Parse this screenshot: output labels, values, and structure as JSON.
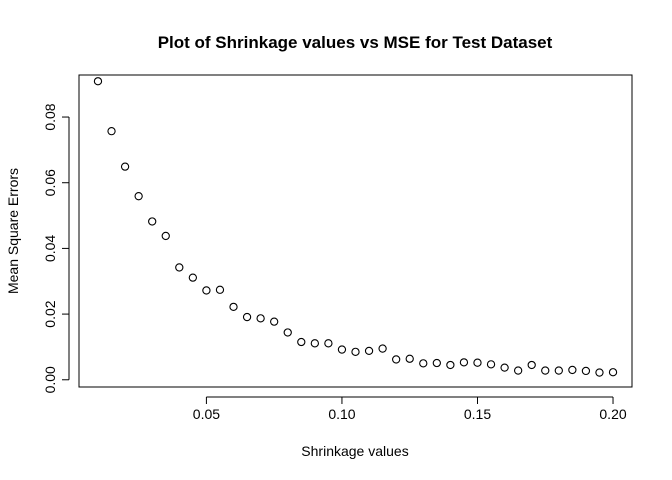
{
  "chart_data": {
    "type": "scatter",
    "title": "Plot of Shrinkage values vs MSE for Test Dataset",
    "xlabel": "Shrinkage values",
    "ylabel": "Mean Square Errors",
    "xlim": [
      0.003,
      0.207
    ],
    "ylim": [
      -0.0022,
      0.0928
    ],
    "xticks": [
      0.05,
      0.1,
      0.15,
      0.2
    ],
    "xtick_labels": [
      "0.05",
      "0.10",
      "0.15",
      "0.20"
    ],
    "yticks": [
      0.0,
      0.02,
      0.04,
      0.06,
      0.08
    ],
    "ytick_labels": [
      "0.00",
      "0.02",
      "0.04",
      "0.06",
      "0.08"
    ],
    "grid": false,
    "legend": "none",
    "marker": "open-circle",
    "x": [
      0.01,
      0.015,
      0.02,
      0.025,
      0.03,
      0.035,
      0.04,
      0.045,
      0.05,
      0.055,
      0.06,
      0.065,
      0.07,
      0.075,
      0.08,
      0.085,
      0.09,
      0.095,
      0.1,
      0.105,
      0.11,
      0.115,
      0.12,
      0.125,
      0.13,
      0.135,
      0.14,
      0.145,
      0.15,
      0.155,
      0.16,
      0.165,
      0.17,
      0.175,
      0.18,
      0.185,
      0.19,
      0.195,
      0.2
    ],
    "y": [
      0.0909,
      0.0757,
      0.0649,
      0.0559,
      0.0482,
      0.0438,
      0.0342,
      0.0311,
      0.0272,
      0.0274,
      0.0222,
      0.0191,
      0.0187,
      0.0177,
      0.0144,
      0.0115,
      0.0111,
      0.0111,
      0.0092,
      0.0085,
      0.0088,
      0.0095,
      0.0062,
      0.0064,
      0.005,
      0.0051,
      0.0045,
      0.0053,
      0.0052,
      0.0047,
      0.0037,
      0.0028,
      0.0045,
      0.0028,
      0.0028,
      0.003,
      0.0027,
      0.0022,
      0.0023
    ]
  }
}
